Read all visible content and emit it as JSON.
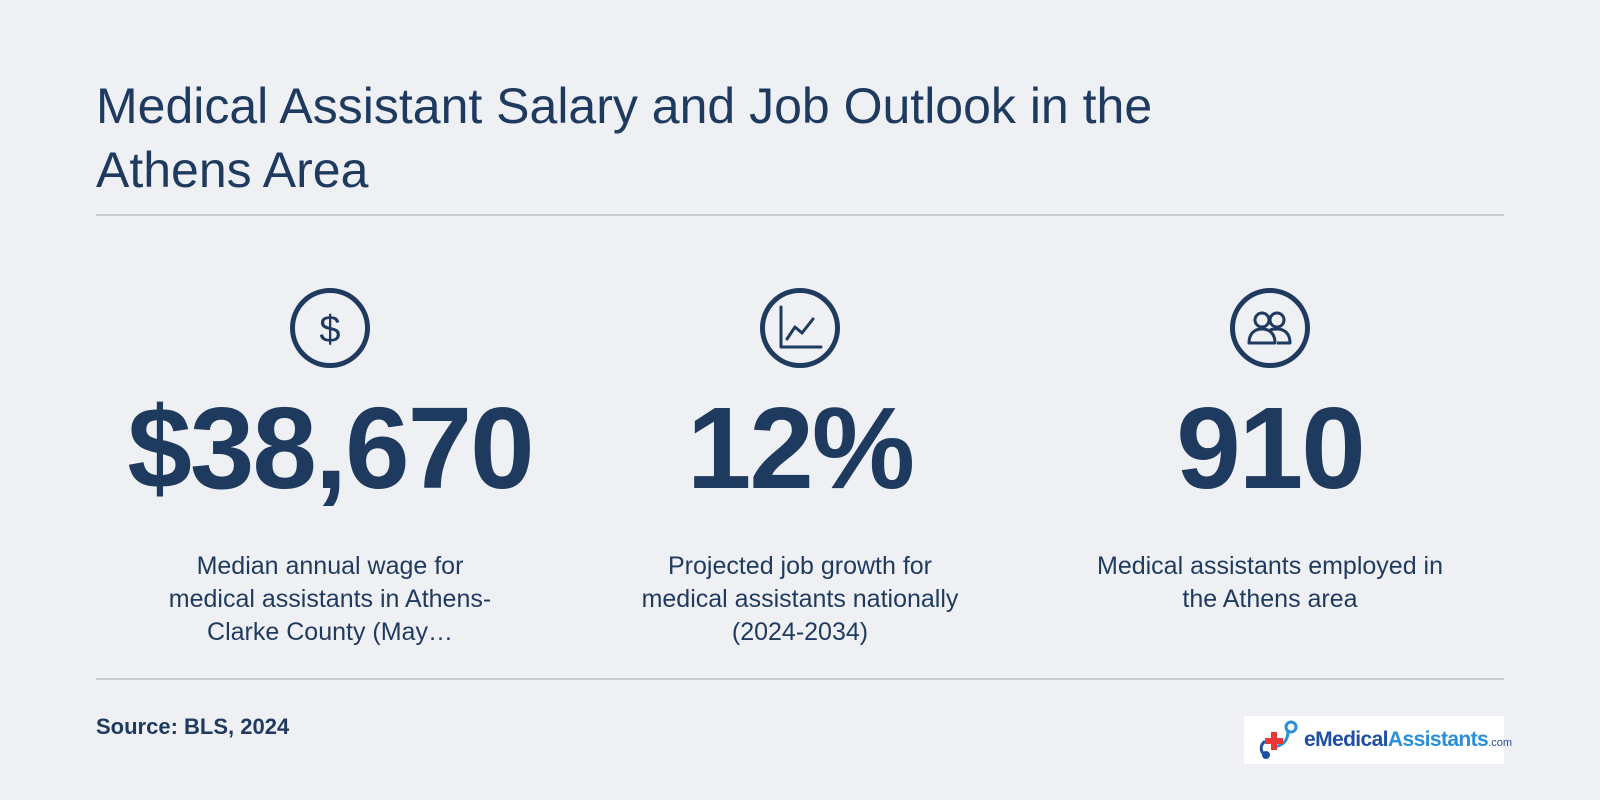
{
  "title": "Medical Assistant Salary and Job Outlook in the Athens Area",
  "stats": [
    {
      "icon": "dollar-icon",
      "value": "$38,670",
      "description": "Median annual wage for medical assistants in Athens-Clarke County (May…"
    },
    {
      "icon": "line-chart-icon",
      "value": "12%",
      "description": "Projected job growth for medical assistants nationally (2024-2034)"
    },
    {
      "icon": "people-icon",
      "value": "910",
      "description": "Medical assistants employed in the Athens area"
    }
  ],
  "source": "Source: BLS, 2024",
  "logo": {
    "e": "e",
    "medical": "Medical",
    "assistants": "Assistants",
    "suffix": ".com"
  },
  "colors": {
    "background": "#eff0f4",
    "text": "#1f3a5f",
    "divider": "#c8cbd0",
    "logo_dark_blue": "#1f4fa0",
    "logo_light_blue": "#2a8fd8",
    "logo_red": "#e53935"
  }
}
